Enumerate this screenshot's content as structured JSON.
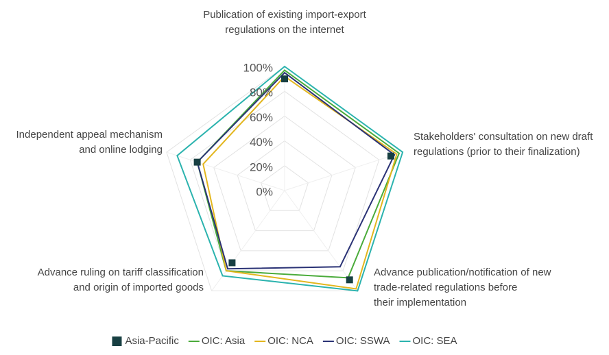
{
  "chart_data": {
    "type": "radar",
    "categories": [
      [
        "Publication of existing import-export",
        "regulations on the internet"
      ],
      [
        "Stakeholders' consultation on new draft",
        "regulations (prior to their finalization)"
      ],
      [
        "Advance publication/notification of new",
        "trade-related regulations before",
        "their implementation"
      ],
      [
        "Advance ruling on tariff classification",
        "and origin of imported goods"
      ],
      [
        "Independent appeal mechanism",
        "and online lodging"
      ]
    ],
    "ylim": [
      0,
      100
    ],
    "yticks": [
      {
        "value": 0,
        "label": "0%"
      },
      {
        "value": 20,
        "label": "20%"
      },
      {
        "value": 40,
        "label": "40%"
      },
      {
        "value": 60,
        "label": "60%"
      },
      {
        "value": 80,
        "label": "80%"
      },
      {
        "value": 100,
        "label": "100%"
      }
    ],
    "grid": true,
    "legend": "bottom",
    "series": [
      {
        "name": "Asia-Pacific",
        "color": "#173f42",
        "style": "marker",
        "values": [
          90,
          90,
          89,
          72,
          74
        ]
      },
      {
        "name": "OIC: Asia",
        "color": "#4aab3a",
        "style": "line",
        "values": [
          97,
          97,
          87,
          80,
          74
        ]
      },
      {
        "name": "OIC: NCA",
        "color": "#e3b61e",
        "style": "line",
        "values": [
          92,
          95,
          98,
          80,
          69
        ]
      },
      {
        "name": "OIC: SSWA",
        "color": "#2a3275",
        "style": "line",
        "values": [
          95,
          93,
          76,
          78,
          74
        ]
      },
      {
        "name": "OIC: SEA",
        "color": "#2bb3ae",
        "style": "line",
        "values": [
          100,
          100,
          100,
          85,
          91
        ]
      }
    ]
  }
}
